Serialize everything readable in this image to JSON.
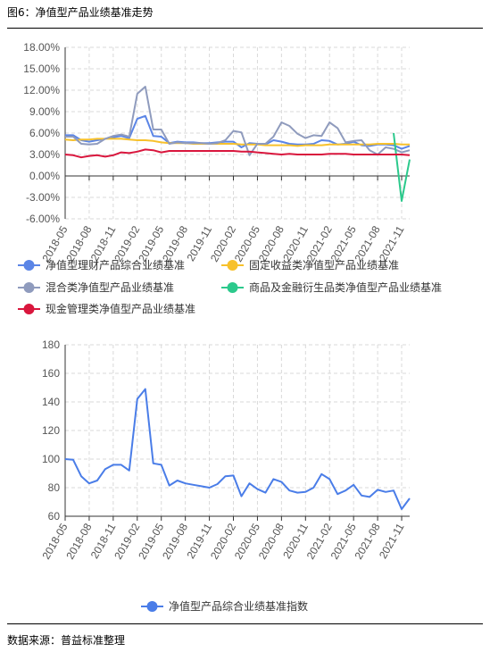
{
  "header": {
    "title": "图6：净值型产品业绩基准走势"
  },
  "footer": {
    "source": "数据来源：普益标准整理"
  },
  "colors": {
    "s1": "#5b85e6",
    "s2": "#f7c12c",
    "s3": "#8f9bbd",
    "s4": "#2cc98c",
    "s5": "#d9163d",
    "idx": "#4a7de8",
    "grid": "#d9d9d9",
    "axis": "#333333"
  },
  "x_ticks": [
    "2018-05",
    "2018-08",
    "2018-11",
    "2019-02",
    "2019-05",
    "2019-08",
    "2019-11",
    "2020-02",
    "2020-05",
    "2020-08",
    "2020-11",
    "2021-02",
    "2021-05",
    "2021-08",
    "2021-11"
  ],
  "chart_data": [
    {
      "type": "line",
      "categories": [
        "2018-05",
        "2018-06",
        "2018-07",
        "2018-08",
        "2018-09",
        "2018-10",
        "2018-11",
        "2018-12",
        "2019-01",
        "2019-02",
        "2019-03",
        "2019-04",
        "2019-05",
        "2019-06",
        "2019-07",
        "2019-08",
        "2019-09",
        "2019-10",
        "2019-11",
        "2019-12",
        "2020-01",
        "2020-02",
        "2020-03",
        "2020-04",
        "2020-05",
        "2020-06",
        "2020-07",
        "2020-08",
        "2020-09",
        "2020-10",
        "2020-11",
        "2020-12",
        "2021-01",
        "2021-02",
        "2021-03",
        "2021-04",
        "2021-05",
        "2021-06",
        "2021-07",
        "2021-08",
        "2021-09",
        "2021-10",
        "2021-11",
        "2021-12"
      ],
      "ylim": [
        -6,
        18
      ],
      "yticks": [
        -6,
        -3,
        0,
        3,
        6,
        9,
        12,
        15,
        18
      ],
      "ytick_labels": [
        "-6.00%",
        "-3.00%",
        "0.00%",
        "3.00%",
        "6.00%",
        "9.00%",
        "12.00%",
        "15.00%",
        "18.00%"
      ],
      "legend_position": "bottom",
      "series": [
        {
          "name": "净值型理财产品综合业绩基准",
          "color_key": "s1",
          "values": [
            5.7,
            5.7,
            5.0,
            4.8,
            5.0,
            5.2,
            5.4,
            5.6,
            5.3,
            8.0,
            8.4,
            5.6,
            5.5,
            4.6,
            4.8,
            4.7,
            4.7,
            4.6,
            4.6,
            4.7,
            4.8,
            4.8,
            4.0,
            4.6,
            4.5,
            4.4,
            5.0,
            4.8,
            4.5,
            4.4,
            4.4,
            4.5,
            5.0,
            4.9,
            4.4,
            4.5,
            4.8,
            4.3,
            4.2,
            4.4,
            4.4,
            4.3,
            3.8,
            4.2
          ]
        },
        {
          "name": "固定收益类净值型产品业绩基准",
          "color_key": "s2",
          "values": [
            5.1,
            5.0,
            5.1,
            5.1,
            5.2,
            5.2,
            5.2,
            5.2,
            5.1,
            5.0,
            5.0,
            4.9,
            4.7,
            4.6,
            4.6,
            4.6,
            4.5,
            4.5,
            4.5,
            4.5,
            4.5,
            4.5,
            4.4,
            4.4,
            4.4,
            4.3,
            4.3,
            4.3,
            4.3,
            4.2,
            4.3,
            4.3,
            4.3,
            4.4,
            4.4,
            4.4,
            4.4,
            4.4,
            4.4,
            4.5,
            4.5,
            4.5,
            4.4,
            4.4
          ]
        },
        {
          "name": "混合类净值型产品业绩基准",
          "color_key": "s3",
          "values": [
            5.5,
            5.5,
            4.5,
            4.4,
            4.5,
            5.2,
            5.6,
            5.8,
            5.5,
            11.5,
            12.5,
            6.5,
            6.5,
            4.5,
            4.7,
            4.6,
            4.6,
            4.6,
            4.5,
            4.6,
            5.0,
            6.3,
            6.1,
            2.9,
            4.5,
            4.5,
            5.5,
            7.5,
            7.0,
            5.9,
            5.3,
            5.7,
            5.6,
            7.5,
            6.7,
            4.7,
            4.9,
            5.0,
            3.6,
            3.0,
            4.0,
            3.8,
            3.3,
            3.6
          ]
        },
        {
          "name": "商品及金融衍生品类净值型产品业绩基准",
          "color_key": "s4",
          "values": [
            null,
            null,
            null,
            null,
            null,
            null,
            null,
            null,
            null,
            null,
            null,
            null,
            null,
            null,
            null,
            null,
            null,
            null,
            null,
            null,
            null,
            null,
            null,
            null,
            null,
            null,
            null,
            null,
            null,
            null,
            null,
            null,
            null,
            null,
            null,
            null,
            null,
            null,
            null,
            null,
            null,
            6.0,
            -3.5,
            2.3
          ]
        },
        {
          "name": "现金管理类净值型产品业绩基准",
          "color_key": "s5",
          "values": [
            3.0,
            2.9,
            2.6,
            2.8,
            2.9,
            2.7,
            2.9,
            3.3,
            3.2,
            3.4,
            3.7,
            3.6,
            3.3,
            3.5,
            3.5,
            3.5,
            3.5,
            3.5,
            3.5,
            3.5,
            3.5,
            3.5,
            3.4,
            3.4,
            3.3,
            3.2,
            3.1,
            3.0,
            3.1,
            3.0,
            3.0,
            3.0,
            3.0,
            3.1,
            3.1,
            3.1,
            3.0,
            3.0,
            3.0,
            3.0,
            3.0,
            3.0,
            3.0,
            2.9
          ]
        }
      ]
    },
    {
      "type": "line",
      "categories": [
        "2018-05",
        "2018-06",
        "2018-07",
        "2018-08",
        "2018-09",
        "2018-10",
        "2018-11",
        "2018-12",
        "2019-01",
        "2019-02",
        "2019-03",
        "2019-04",
        "2019-05",
        "2019-06",
        "2019-07",
        "2019-08",
        "2019-09",
        "2019-10",
        "2019-11",
        "2019-12",
        "2020-01",
        "2020-02",
        "2020-03",
        "2020-04",
        "2020-05",
        "2020-06",
        "2020-07",
        "2020-08",
        "2020-09",
        "2020-10",
        "2020-11",
        "2020-12",
        "2021-01",
        "2021-02",
        "2021-03",
        "2021-04",
        "2021-05",
        "2021-06",
        "2021-07",
        "2021-08",
        "2021-09",
        "2021-10",
        "2021-11",
        "2021-12"
      ],
      "ylim": [
        60,
        180
      ],
      "yticks": [
        60,
        80,
        100,
        120,
        140,
        160,
        180
      ],
      "ytick_labels": [
        "60",
        "80",
        "100",
        "120",
        "140",
        "160",
        "180"
      ],
      "legend_position": "bottom",
      "series": [
        {
          "name": "净值型产品综合业绩基准指数",
          "color_key": "idx",
          "values": [
            100,
            99.5,
            88,
            83,
            85,
            93,
            96,
            96,
            92,
            142,
            149,
            97,
            96,
            81.5,
            85,
            83,
            82,
            81,
            80,
            82.5,
            88,
            88.5,
            74,
            83,
            79,
            76.5,
            86,
            84,
            78,
            76.5,
            77,
            80,
            89.5,
            86,
            75.5,
            78,
            82,
            74.5,
            73.5,
            78.5,
            77,
            78,
            65,
            72.5
          ]
        }
      ]
    }
  ]
}
